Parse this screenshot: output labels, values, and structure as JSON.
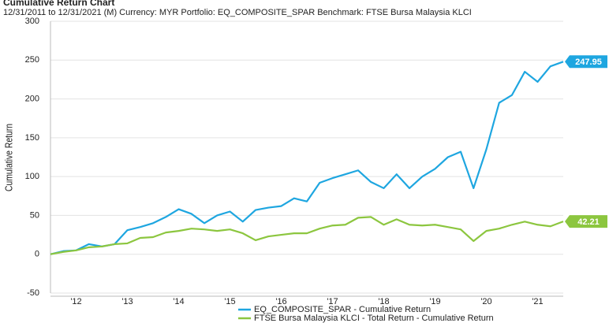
{
  "chart_data": {
    "type": "line",
    "title": "Cumulative Return Chart",
    "subtitle": "12/31/2011 to 12/31/2021 (M) Currency: MYR Portfolio: EQ_COMPOSITE_SPAR Benchmark: FTSE Bursa Malaysia KLCI",
    "y_label": "Cumulative Return",
    "x": [
      2012,
      2012.25,
      2012.5,
      2012.75,
      2013,
      2013.25,
      2013.5,
      2013.75,
      2014,
      2014.25,
      2014.5,
      2014.75,
      2015,
      2015.25,
      2015.5,
      2015.75,
      2016,
      2016.25,
      2016.5,
      2016.75,
      2017,
      2017.25,
      2017.5,
      2017.75,
      2018,
      2018.25,
      2018.5,
      2018.75,
      2019,
      2019.25,
      2019.5,
      2019.75,
      2020,
      2020.25,
      2020.5,
      2020.75,
      2021,
      2021.25,
      2021.5,
      2021.75,
      2022
    ],
    "series": [
      {
        "name": "EQ_COMPOSITE_SPAR - Cumulative Return",
        "color": "#1ea6e0",
        "values": [
          0,
          4,
          5,
          13,
          10,
          13,
          31,
          35,
          40,
          48,
          58,
          52,
          40,
          50,
          55,
          42,
          57,
          60,
          62,
          72,
          68,
          92,
          98,
          103,
          108,
          93,
          85,
          103,
          85,
          100,
          110,
          125,
          132,
          85,
          135,
          195,
          205,
          235,
          222,
          242,
          247.95
        ]
      },
      {
        "name": "FTSE Bursa Malaysia KLCI - Total Return - Cumulative Return",
        "color": "#8cc63f",
        "values": [
          0,
          3,
          5,
          9,
          10,
          13,
          14,
          21,
          22,
          28,
          30,
          33,
          32,
          30,
          32,
          27,
          18,
          23,
          25,
          27,
          27,
          33,
          37,
          38,
          47,
          48,
          38,
          45,
          38,
          37,
          38,
          35,
          32,
          17,
          30,
          33,
          38,
          42,
          38,
          36,
          42.21
        ]
      }
    ],
    "xlim": [
      2012,
      2022
    ],
    "xticks": [
      {
        "value": 2012.5,
        "label": "'12"
      },
      {
        "value": 2013.5,
        "label": "'13"
      },
      {
        "value": 2014.5,
        "label": "'14"
      },
      {
        "value": 2015.5,
        "label": "'15"
      },
      {
        "value": 2016.5,
        "label": "'16"
      },
      {
        "value": 2017.5,
        "label": "'17"
      },
      {
        "value": 2018.5,
        "label": "'18"
      },
      {
        "value": 2019.5,
        "label": "'19"
      },
      {
        "value": 2020.5,
        "label": "'20"
      },
      {
        "value": 2021.5,
        "label": "'21"
      }
    ],
    "ylim": [
      -50,
      300
    ],
    "yticks": [
      -50,
      0,
      50,
      100,
      150,
      200,
      250,
      300
    ],
    "grid": true
  }
}
